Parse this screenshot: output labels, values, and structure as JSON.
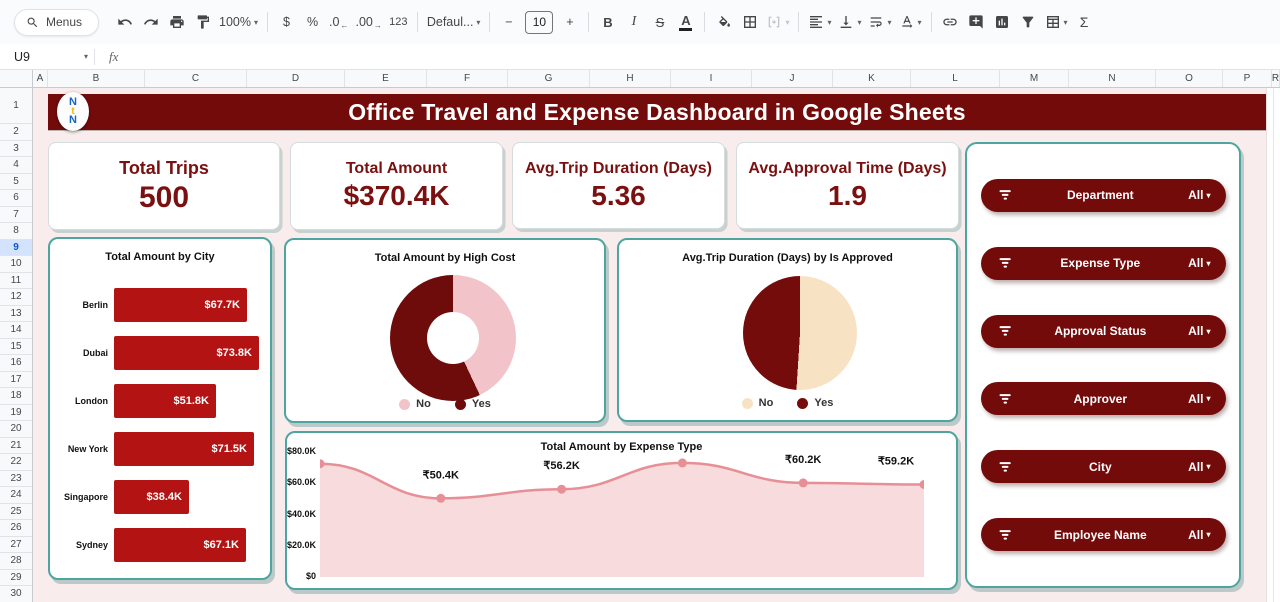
{
  "toolbar": {
    "menus_label": "Menus",
    "zoom_value": "100%",
    "currency_label": "$",
    "percent_label": "%",
    "decimal_decrease_label": ".0",
    "decimal_increase_label": ".00",
    "number_format_label": "123",
    "font_family_value": "Defaul...",
    "font_size_decrease_label": "−",
    "font_size_value": "10",
    "font_size_increase_label": "+",
    "bold_label": "B",
    "italic_label": "I",
    "strikethrough_label": "S",
    "text_color_label": "A",
    "sigma_label": "Σ"
  },
  "icons": {
    "caret": "▾",
    "arrow_left": "←",
    "arrow_right": "→"
  },
  "formula_bar": {
    "name_box_value": "U9",
    "fx_label": "fx"
  },
  "grid": {
    "columns": [
      "A",
      "B",
      "C",
      "D",
      "E",
      "F",
      "G",
      "H",
      "I",
      "J",
      "K",
      "L",
      "M",
      "N",
      "O",
      "P",
      "R"
    ],
    "rows": [
      "1",
      "2",
      "3",
      "4",
      "5",
      "6",
      "7",
      "8",
      "9",
      "10",
      "11",
      "12",
      "13",
      "14",
      "15",
      "16",
      "17",
      "18",
      "19",
      "20",
      "21",
      "22",
      "23",
      "24",
      "25",
      "26",
      "27",
      "28",
      "29",
      "30"
    ],
    "selected_row": "9",
    "selected_cell": "U9"
  },
  "dashboard": {
    "title": "Office Travel and Expense Dashboard in Google Sheets",
    "logo_letters": [
      "N",
      "t",
      "N"
    ],
    "kpis": [
      {
        "label": "Total Trips",
        "value": "500"
      },
      {
        "label": "Total Amount",
        "value": "$370.4K"
      },
      {
        "label": "Avg.Trip Duration (Days)",
        "value": "5.36"
      },
      {
        "label": "Avg.Approval Time (Days)",
        "value": "1.9"
      }
    ],
    "filters": {
      "items": [
        {
          "label": "Department",
          "value": "All"
        },
        {
          "label": "Expense Type",
          "value": "All"
        },
        {
          "label": "Approval Status",
          "value": "All"
        },
        {
          "label": "Approver",
          "value": "All"
        },
        {
          "label": "City",
          "value": "All"
        },
        {
          "label": "Employee Name",
          "value": "All"
        }
      ]
    },
    "colors": {
      "maroon": "#740B0B",
      "bar_red": "#B31312",
      "pink": "#F2C4CA",
      "cream": "#F8E2C4",
      "line_salmon": "#E78F97",
      "line_fill": "#F7DBDD",
      "teal_border": "#4EA5A0",
      "sheet_background": "#F8ECEC",
      "kpi_text": "#7A1010"
    }
  },
  "chart_data": [
    {
      "type": "bar",
      "orientation": "horizontal",
      "title": "Total Amount by City",
      "categories": [
        "Berlin",
        "Dubai",
        "London",
        "New York",
        "Singapore",
        "Sydney"
      ],
      "values": [
        67.7,
        73.8,
        51.8,
        71.5,
        38.4,
        67.1
      ],
      "unit": "K USD",
      "labels": [
        "$67.7K",
        "$73.8K",
        "$51.8K",
        "$71.5K",
        "$38.4K",
        "$67.1K"
      ],
      "bar_color": "#B31312"
    },
    {
      "type": "pie",
      "subtype": "donut",
      "title": "Total Amount by High Cost",
      "categories": [
        "No",
        "Yes"
      ],
      "values_pct": [
        43,
        57
      ],
      "colors": [
        "#F2C4CA",
        "#6E0B0B"
      ],
      "legend_position": "bottom"
    },
    {
      "type": "pie",
      "title": "Avg.Trip Duration (Days) by Is Approved",
      "categories": [
        "No",
        "Yes"
      ],
      "values_pct": [
        51,
        49
      ],
      "colors": [
        "#F8E2C4",
        "#750C0C"
      ],
      "legend_position": "bottom"
    },
    {
      "type": "line",
      "subtype": "smooth-area",
      "title": "Total Amount by Expense Type",
      "x_tick_labels_visible": false,
      "values_k": [
        72.5,
        50.4,
        56.2,
        73.0,
        60.2,
        59.2
      ],
      "estimated_points": [
        true,
        false,
        false,
        true,
        false,
        false
      ],
      "point_labels": [
        null,
        "₹50.4K",
        "₹56.2K",
        null,
        "₹60.2K",
        "₹59.2K"
      ],
      "y_ticks": [
        "$80.0K",
        "$60.0K",
        "$40.0K",
        "$20.0K",
        "$0"
      ],
      "ylim_k": [
        0,
        80
      ],
      "line_color": "#E78F97",
      "fill_color": "#F7DBDD"
    }
  ]
}
